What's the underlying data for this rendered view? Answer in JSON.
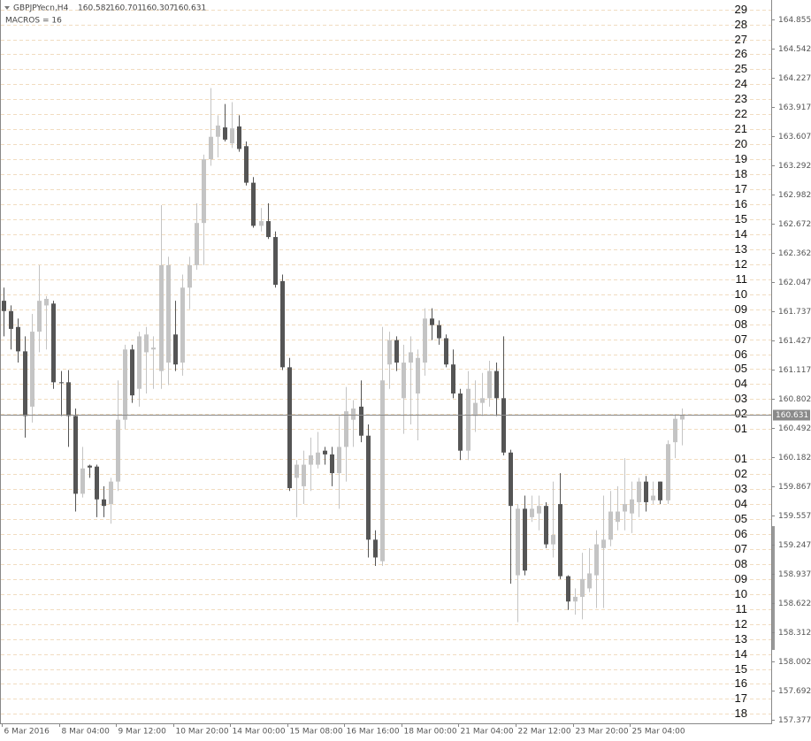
{
  "chart_data": {
    "type": "candlestick",
    "header": {
      "symbol": "GBPJPYecn,H4",
      "ohlc": [
        160.582,
        160.701,
        160.307,
        160.631
      ]
    },
    "indicator_label": "MACROS = 16",
    "up_color": "#c4c4c4",
    "down_color": "#555555",
    "level_color": "#f1dcc0",
    "ylim": [
      157.34,
      165.06
    ],
    "yticks": [
      164.855,
      164.542,
      164.227,
      163.917,
      163.607,
      163.292,
      162.982,
      162.672,
      162.362,
      162.047,
      161.737,
      161.427,
      161.117,
      160.802,
      160.492,
      160.182,
      159.867,
      159.557,
      159.247,
      158.937,
      158.622,
      158.312,
      158.002,
      157.692,
      157.377
    ],
    "current_price": 160.631,
    "levels": [
      {
        "value": 164.96,
        "label": "29"
      },
      {
        "value": 164.8,
        "label": "28"
      },
      {
        "value": 164.64,
        "label": "27"
      },
      {
        "value": 164.48,
        "label": "26"
      },
      {
        "value": 164.32,
        "label": "25"
      },
      {
        "value": 164.16,
        "label": "24"
      },
      {
        "value": 164.0,
        "label": "23"
      },
      {
        "value": 163.84,
        "label": "22"
      },
      {
        "value": 163.68,
        "label": "21"
      },
      {
        "value": 163.52,
        "label": "20"
      },
      {
        "value": 163.36,
        "label": "19"
      },
      {
        "value": 163.2,
        "label": "18"
      },
      {
        "value": 163.04,
        "label": "17"
      },
      {
        "value": 162.88,
        "label": "16"
      },
      {
        "value": 162.72,
        "label": "15"
      },
      {
        "value": 162.56,
        "label": "14"
      },
      {
        "value": 162.4,
        "label": "13"
      },
      {
        "value": 162.24,
        "label": "12"
      },
      {
        "value": 162.08,
        "label": "11"
      },
      {
        "value": 161.92,
        "label": "10"
      },
      {
        "value": 161.76,
        "label": "09"
      },
      {
        "value": 161.6,
        "label": "08"
      },
      {
        "value": 161.44,
        "label": "07"
      },
      {
        "value": 161.28,
        "label": "06"
      },
      {
        "value": 161.12,
        "label": "05"
      },
      {
        "value": 160.96,
        "label": "04"
      },
      {
        "value": 160.8,
        "label": "03"
      },
      {
        "value": 160.64,
        "label": "02"
      },
      {
        "value": 160.48,
        "label": "01"
      },
      {
        "value": 160.16,
        "label": "01"
      },
      {
        "value": 160.0,
        "label": "02"
      },
      {
        "value": 159.84,
        "label": "03"
      },
      {
        "value": 159.68,
        "label": "04"
      },
      {
        "value": 159.52,
        "label": "05"
      },
      {
        "value": 159.36,
        "label": "06"
      },
      {
        "value": 159.2,
        "label": "07"
      },
      {
        "value": 159.04,
        "label": "08"
      },
      {
        "value": 158.88,
        "label": "09"
      },
      {
        "value": 158.72,
        "label": "10"
      },
      {
        "value": 158.56,
        "label": "11"
      },
      {
        "value": 158.4,
        "label": "12"
      },
      {
        "value": 158.24,
        "label": "13"
      },
      {
        "value": 158.08,
        "label": "14"
      },
      {
        "value": 157.92,
        "label": "15"
      },
      {
        "value": 157.76,
        "label": "16"
      },
      {
        "value": 157.6,
        "label": "17"
      },
      {
        "value": 157.44,
        "label": "18"
      }
    ],
    "categories": [
      "6 Mar 2016",
      null,
      null,
      null,
      null,
      null,
      null,
      null,
      "8 Mar 04:00",
      null,
      null,
      null,
      null,
      null,
      null,
      null,
      "9 Mar 12:00",
      null,
      null,
      null,
      null,
      null,
      null,
      null,
      "10 Mar 20:00",
      null,
      null,
      null,
      null,
      null,
      null,
      null,
      "14 Mar 00:00",
      null,
      null,
      null,
      null,
      null,
      null,
      null,
      "15 Mar 08:00",
      null,
      null,
      null,
      null,
      null,
      null,
      null,
      "16 Mar 16:00",
      null,
      null,
      null,
      null,
      null,
      null,
      null,
      "18 Mar 00:00",
      null,
      null,
      null,
      null,
      null,
      null,
      null,
      "21 Mar 04:00",
      null,
      null,
      null,
      null,
      null,
      null,
      null,
      "22 Mar 12:00",
      null,
      null,
      null,
      null,
      null,
      null,
      null,
      "23 Mar 20:00",
      null,
      null,
      null,
      null,
      null,
      null,
      null,
      "25 Mar 04:00",
      null,
      null,
      null,
      null,
      null,
      null,
      null
    ],
    "open": [
      161.85,
      161.74,
      161.57,
      161.31,
      160.72,
      161.52,
      161.8,
      161.82,
      160.98,
      160.98,
      160.62,
      159.79,
      160.09,
      160.08,
      159.73,
      159.68,
      159.92,
      160.58,
      161.33,
      160.91,
      161.3,
      161.33,
      161.1,
      161.19,
      161.49,
      161.19,
      161.99,
      162.23,
      162.68,
      163.36,
      163.6,
      163.7,
      163.53,
      163.71,
      163.5,
      163.11,
      162.65,
      162.7,
      162.53,
      162.06,
      161.14,
      159.96,
      159.87,
      160.1,
      160.1,
      160.25,
      160.21,
      160.01,
      160.29,
      160.58,
      160.72,
      160.41,
      159.3,
      159.07,
      161.17,
      161.43,
      160.81,
      161.19,
      160.86,
      161.19,
      161.66,
      161.59,
      161.45,
      161.17,
      160.86,
      160.25,
      160.62,
      160.76,
      160.81,
      161.1,
      160.81,
      160.23,
      158.92,
      159.63,
      159.54,
      159.58,
      159.66,
      159.25,
      159.68,
      158.91,
      158.64,
      158.69,
      158.78,
      158.92,
      159.21,
      159.3,
      159.49,
      159.6,
      159.58,
      159.7,
      159.92,
      159.72,
      159.92,
      159.72,
      160.34,
      160.582
    ],
    "high": [
      161.99,
      161.8,
      161.66,
      161.47,
      161.71,
      162.23,
      161.9,
      161.85,
      161.1,
      161.11,
      160.7,
      160.29,
      160.1,
      160.1,
      159.87,
      159.96,
      161.0,
      161.38,
      161.38,
      161.52,
      161.57,
      161.47,
      162.87,
      162.32,
      161.85,
      162.13,
      162.32,
      162.89,
      163.41,
      164.12,
      163.83,
      163.95,
      163.97,
      163.83,
      163.55,
      163.17,
      162.84,
      162.89,
      162.59,
      162.13,
      161.24,
      160.15,
      160.25,
      160.39,
      160.45,
      160.29,
      160.29,
      160.62,
      160.93,
      160.79,
      161.0,
      160.53,
      159.4,
      161.57,
      161.52,
      161.47,
      161.38,
      161.47,
      161.33,
      161.77,
      161.77,
      161.64,
      161.49,
      161.33,
      160.91,
      161.1,
      161.0,
      161.08,
      161.21,
      161.19,
      161.47,
      160.26,
      159.68,
      159.77,
      159.77,
      159.77,
      159.7,
      159.92,
      160.01,
      158.92,
      158.78,
      159.16,
      159.21,
      159.4,
      159.77,
      159.82,
      159.87,
      160.17,
      159.92,
      159.96,
      159.98,
      159.92,
      159.92,
      160.36,
      160.64,
      160.701
    ],
    "low": [
      161.47,
      161.33,
      161.19,
      160.39,
      160.55,
      161.3,
      161.33,
      160.91,
      160.62,
      160.29,
      159.6,
      159.75,
      159.96,
      159.54,
      159.54,
      159.47,
      159.82,
      160.48,
      160.76,
      160.72,
      160.86,
      160.91,
      160.91,
      160.95,
      161.1,
      161.05,
      161.76,
      162.18,
      162.23,
      163.29,
      163.38,
      163.55,
      163.48,
      163.44,
      163.08,
      162.63,
      162.59,
      162.51,
      161.99,
      161.11,
      159.82,
      159.54,
      159.68,
      159.82,
      160.06,
      160.1,
      159.87,
      159.63,
      159.92,
      160.29,
      160.34,
      159.11,
      159.02,
      159.02,
      160.91,
      161.1,
      160.43,
      160.53,
      160.36,
      161.05,
      161.43,
      161.38,
      161.14,
      160.81,
      160.15,
      160.15,
      160.45,
      160.62,
      160.72,
      160.62,
      160.2,
      158.83,
      158.42,
      158.92,
      159.49,
      159.4,
      159.21,
      159.11,
      158.88,
      158.55,
      158.5,
      158.45,
      158.74,
      158.57,
      158.57,
      159.23,
      159.4,
      159.4,
      159.37,
      159.54,
      159.6,
      159.68,
      159.68,
      159.68,
      160.17,
      160.307
    ],
    "close": [
      161.74,
      161.55,
      161.31,
      160.62,
      161.52,
      161.85,
      161.87,
      160.98,
      160.97,
      160.62,
      159.79,
      160.06,
      160.07,
      159.73,
      159.66,
      159.92,
      160.58,
      161.33,
      160.84,
      161.47,
      161.49,
      161.35,
      162.23,
      162.23,
      161.17,
      161.99,
      162.23,
      162.68,
      163.36,
      163.6,
      163.72,
      163.57,
      163.69,
      163.47,
      163.11,
      162.65,
      162.7,
      162.53,
      162.02,
      161.14,
      159.85,
      160.1,
      160.1,
      160.2,
      160.23,
      160.21,
      160.01,
      160.29,
      160.67,
      160.7,
      160.41,
      159.3,
      159.11,
      161.0,
      161.43,
      161.19,
      161.19,
      161.3,
      161.24,
      161.66,
      161.59,
      161.45,
      161.17,
      160.86,
      160.25,
      160.91,
      160.76,
      160.81,
      161.1,
      160.81,
      160.23,
      159.66,
      159.63,
      158.97,
      159.63,
      159.66,
      159.25,
      159.35,
      158.91,
      158.64,
      158.69,
      158.88,
      158.94,
      159.25,
      159.3,
      159.6,
      159.6,
      159.68,
      159.73,
      159.92,
      159.7,
      159.77,
      159.72,
      160.32,
      160.59,
      160.631
    ]
  }
}
